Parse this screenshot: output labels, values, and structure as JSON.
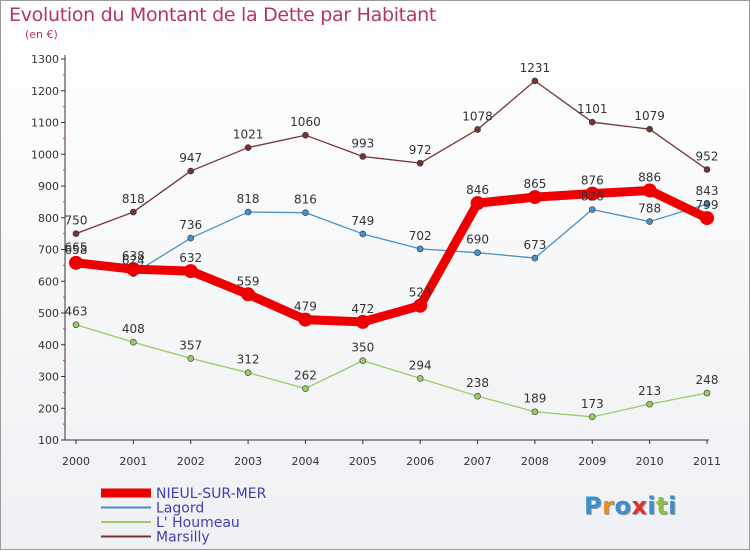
{
  "title": "Evolution du Montant de la Dette par Habitant",
  "unit": "(en €)",
  "logo_text": "Proxiti",
  "chart_data": {
    "type": "line",
    "title": "Evolution du Montant de la Dette par Habitant",
    "subtitle": "(en €)",
    "xlabel": "",
    "ylabel": "",
    "x": [
      "2000",
      "2001",
      "2002",
      "2003",
      "2004",
      "2005",
      "2006",
      "2007",
      "2008",
      "2009",
      "2010",
      "2011"
    ],
    "ylim": [
      100,
      1300
    ],
    "yticks": [
      100,
      200,
      300,
      400,
      500,
      600,
      700,
      800,
      900,
      1000,
      1100,
      1200,
      1300
    ],
    "grid": false,
    "legend_position": "bottom-left",
    "series": [
      {
        "name": "NIEUL-SUR-MER",
        "color": "#ee0000",
        "values": [
          658,
          638,
          632,
          559,
          479,
          472,
          523,
          846,
          865,
          876,
          886,
          799
        ]
      },
      {
        "name": "Lagord",
        "color": "#4a90c8",
        "values": [
          665,
          624,
          736,
          818,
          816,
          749,
          702,
          690,
          673,
          826,
          788,
          843
        ]
      },
      {
        "name": "L' Houmeau",
        "color": "#99cc66",
        "values": [
          463,
          408,
          357,
          312,
          262,
          350,
          294,
          238,
          189,
          173,
          213,
          248
        ]
      },
      {
        "name": "Marsilly",
        "color": "#773333",
        "values": [
          750,
          818,
          947,
          1021,
          1060,
          993,
          972,
          1078,
          1231,
          1101,
          1079,
          952
        ]
      }
    ]
  }
}
